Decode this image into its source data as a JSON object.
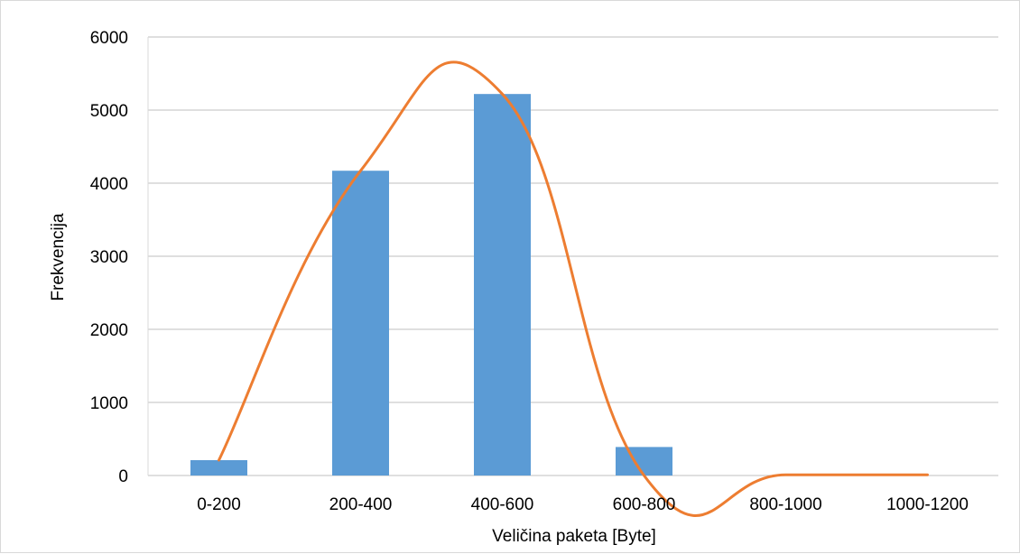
{
  "chart_data": {
    "type": "bar",
    "categories": [
      "0-200",
      "200-400",
      "400-600",
      "600-800",
      "800-1000",
      "1000-1200"
    ],
    "series": [
      {
        "type": "bar",
        "values": [
          210,
          4170,
          5220,
          390,
          0,
          0
        ],
        "color": "#5b9bd5"
      },
      {
        "type": "line",
        "smooth": true,
        "values": [
          210,
          4170,
          5220,
          0,
          10,
          10
        ],
        "color": "#ed7d31"
      }
    ],
    "title": "",
    "xlabel": "Veličina paketa [Byte]",
    "ylabel": "Frekvencija",
    "ylim": [
      0,
      6000
    ],
    "yticks": [
      "0",
      "1000",
      "2000",
      "3000",
      "4000",
      "5000",
      "6000"
    ],
    "grid": true,
    "legend": "none"
  }
}
